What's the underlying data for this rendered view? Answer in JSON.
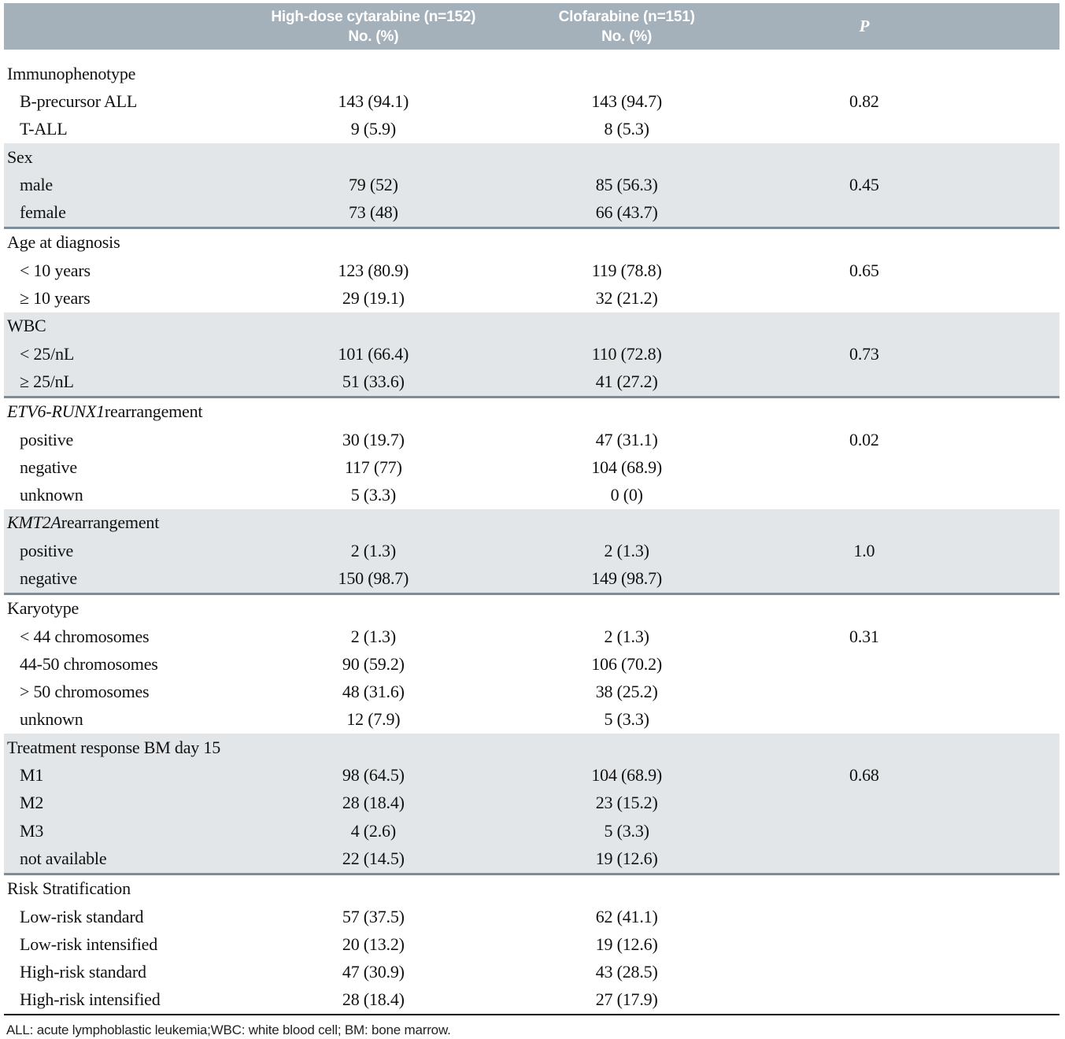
{
  "header": {
    "col_hdc": {
      "line1": "High-dose cytarabine (n=152)",
      "line2": "No. (%)"
    },
    "col_clo": {
      "line1": "Clofarabine (n=151)",
      "line2": "No. (%)"
    },
    "p_label": "P"
  },
  "sections": [
    {
      "title_em": "",
      "title_rest": "Immunophenotype",
      "shaded": false,
      "rows": [
        {
          "label": "B-precursor ALL",
          "hdc": "143 (94.1)",
          "clo": "143 (94.7)",
          "p": "0.82"
        },
        {
          "label": "T-ALL",
          "hdc": "9 (5.9)",
          "clo": "8 (5.3)",
          "p": ""
        }
      ]
    },
    {
      "title_em": "",
      "title_rest": "Sex",
      "shaded": true,
      "rows": [
        {
          "label": "male",
          "hdc": "79 (52)",
          "clo": "85 (56.3)",
          "p": "0.45"
        },
        {
          "label": "female",
          "hdc": "73 (48)",
          "clo": "66 (43.7)",
          "p": ""
        }
      ]
    },
    {
      "title_em": "",
      "title_rest": "Age at diagnosis",
      "shaded": false,
      "rows": [
        {
          "label": "< 10 years",
          "hdc": "123 (80.9)",
          "clo": "119 (78.8)",
          "p": "0.65"
        },
        {
          "label": "≥ 10 years",
          "hdc": "29 (19.1)",
          "clo": "32 (21.2)",
          "p": ""
        }
      ]
    },
    {
      "title_em": "",
      "title_rest": "WBC",
      "shaded": true,
      "rows": [
        {
          "label": "< 25/nL",
          "hdc": "101 (66.4)",
          "clo": "110 (72.8)",
          "p": "0.73"
        },
        {
          "label": "≥ 25/nL",
          "hdc": "51 (33.6)",
          "clo": "41 (27.2)",
          "p": ""
        }
      ]
    },
    {
      "title_em": "ETV6-RUNX1",
      "title_rest": " rearrangement",
      "shaded": false,
      "rows": [
        {
          "label": "positive",
          "hdc": "30 (19.7)",
          "clo": "47 (31.1)",
          "p": "0.02"
        },
        {
          "label": "negative",
          "hdc": "117 (77)",
          "clo": "104 (68.9)",
          "p": ""
        },
        {
          "label": "unknown",
          "hdc": "5 (3.3)",
          "clo": "0 (0)",
          "p": ""
        }
      ]
    },
    {
      "title_em": "KMT2A",
      "title_rest": " rearrangement",
      "shaded": true,
      "rows": [
        {
          "label": "positive",
          "hdc": "2 (1.3)",
          "clo": "2 (1.3)",
          "p": "1.0"
        },
        {
          "label": "negative",
          "hdc": "150 (98.7)",
          "clo": "149 (98.7)",
          "p": ""
        }
      ]
    },
    {
      "title_em": "",
      "title_rest": "Karyotype",
      "shaded": false,
      "rows": [
        {
          "label": "< 44 chromosomes",
          "hdc": "2 (1.3)",
          "clo": "2 (1.3)",
          "p": "0.31"
        },
        {
          "label": "44-50 chromosomes",
          "hdc": "90 (59.2)",
          "clo": "106 (70.2)",
          "p": ""
        },
        {
          "label": "> 50 chromosomes",
          "hdc": "48 (31.6)",
          "clo": "38 (25.2)",
          "p": ""
        },
        {
          "label": "unknown",
          "hdc": "12 (7.9)",
          "clo": "5 (3.3)",
          "p": ""
        }
      ]
    },
    {
      "title_em": "",
      "title_rest": "Treatment response BM day 15",
      "shaded": true,
      "rows": [
        {
          "label": "M1",
          "hdc": "98 (64.5)",
          "clo": "104 (68.9)",
          "p": "0.68"
        },
        {
          "label": "M2",
          "hdc": "28 (18.4)",
          "clo": "23 (15.2)",
          "p": ""
        },
        {
          "label": "M3",
          "hdc": "4 (2.6)",
          "clo": "5 (3.3)",
          "p": ""
        },
        {
          "label": "not available",
          "hdc": "22 (14.5)",
          "clo": "19 (12.6)",
          "p": ""
        }
      ]
    },
    {
      "title_em": "",
      "title_rest": "Risk Stratification",
      "shaded": false,
      "rows": [
        {
          "label": "Low-risk standard",
          "hdc": "57 (37.5)",
          "clo": "62 (41.1)",
          "p": ""
        },
        {
          "label": "Low-risk intensified",
          "hdc": "20 (13.2)",
          "clo": "19 (12.6)",
          "p": ""
        },
        {
          "label": "High-risk standard",
          "hdc": "47 (30.9)",
          "clo": "43 (28.5)",
          "p": ""
        },
        {
          "label": "High-risk intensified",
          "hdc": "28 (18.4)",
          "clo": "27 (17.9)",
          "p": ""
        }
      ]
    }
  ],
  "footnote": "ALL: acute lymphoblastic leukemia;WBC: white blood cell; BM: bone marrow.",
  "colors": {
    "header_bg": "#a4b1bb",
    "shaded_row_bg": "#e2e6e8",
    "section_divider": "#7d8d99",
    "bottom_rule": "#000000"
  }
}
